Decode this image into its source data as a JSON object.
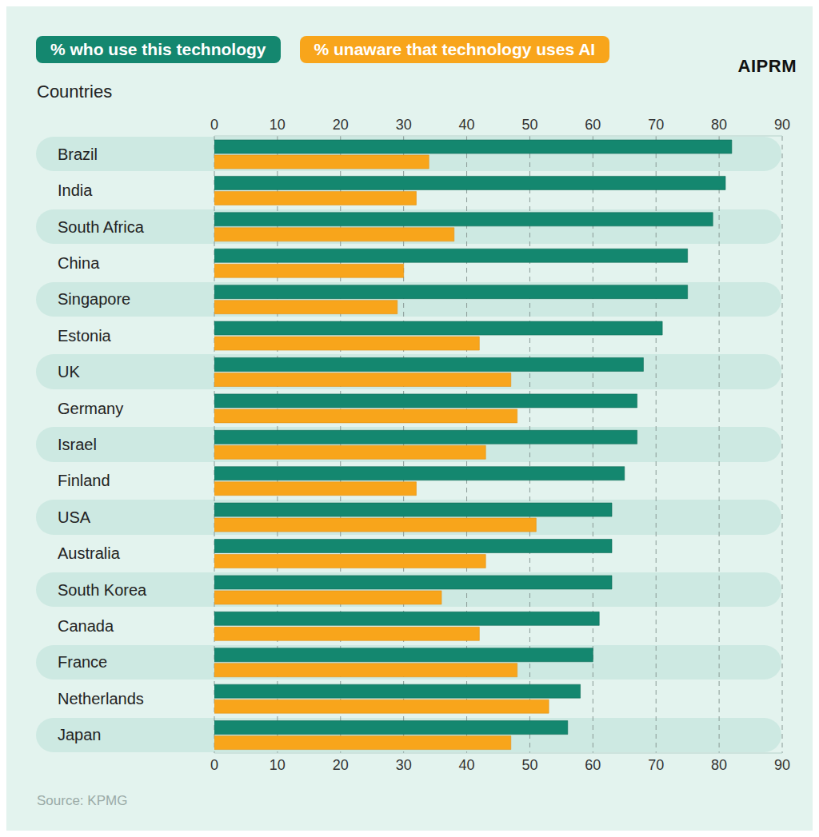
{
  "chart_data": {
    "type": "bar",
    "orientation": "horizontal",
    "ylabel": "Countries",
    "logo": "AIPRM",
    "source": "Source: KPMG",
    "categories": [
      "Brazil",
      "India",
      "South Africa",
      "China",
      "Singapore",
      "Estonia",
      "UK",
      "Germany",
      "Israel",
      "Finland",
      "USA",
      "Australia",
      "South Korea",
      "Canada",
      "France",
      "Netherlands",
      "Japan"
    ],
    "series": [
      {
        "name": "% who use this technology",
        "color": "#14876f",
        "values": [
          82,
          81,
          79,
          75,
          75,
          71,
          68,
          67,
          67,
          65,
          63,
          63,
          63,
          61,
          60,
          58,
          56
        ]
      },
      {
        "name": "% unaware that technology uses AI",
        "color": "#f8a51b",
        "values": [
          34,
          32,
          38,
          30,
          29,
          42,
          47,
          48,
          43,
          32,
          51,
          43,
          36,
          42,
          48,
          53,
          47
        ]
      }
    ],
    "xlim": [
      0,
      90
    ],
    "xticks": [
      0,
      10,
      20,
      30,
      40,
      50,
      60,
      70,
      80,
      90
    ],
    "grid": true,
    "legend": "top-left"
  }
}
